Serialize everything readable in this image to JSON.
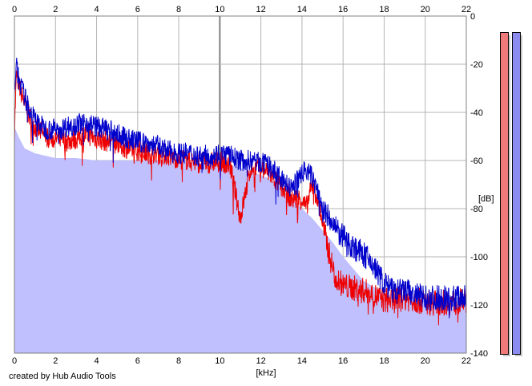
{
  "chart_data": {
    "type": "line",
    "title": "",
    "xlabel": "[kHz]",
    "ylabel": "[dB]",
    "xlim": [
      0,
      22
    ],
    "ylim": [
      -140,
      0
    ],
    "x_ticks": [
      "0",
      "2",
      "4",
      "6",
      "8",
      "10",
      "12",
      "14",
      "16",
      "18",
      "20",
      "22"
    ],
    "y_ticks": [
      "0",
      "-20",
      "-40",
      "-60",
      "-80",
      "-100",
      "-120",
      "-140"
    ],
    "grid": true,
    "fill_color": "#c0c0ff",
    "series": [
      {
        "color": "#0000cc",
        "x": [
          0,
          0.1,
          0.2,
          0.4,
          0.6,
          0.8,
          1,
          1.5,
          2,
          2.5,
          3,
          3.5,
          4,
          4.5,
          5,
          5.5,
          6,
          6.5,
          7,
          7.5,
          8,
          8.5,
          9,
          9.5,
          10,
          10.5,
          11,
          11.5,
          12,
          12.5,
          13,
          13.5,
          14,
          14.2,
          14.5,
          14.8,
          15,
          15.3,
          15.6,
          16,
          16.5,
          17,
          17.5,
          18,
          18.5,
          19,
          19.5,
          20,
          20.5,
          21,
          21.5,
          22
        ],
        "y": [
          -30,
          -21,
          -26,
          -31,
          -36,
          -40,
          -43,
          -47,
          -47,
          -46,
          -45,
          -44,
          -46,
          -47,
          -49,
          -51,
          -52,
          -53,
          -54,
          -56,
          -57,
          -57,
          -58,
          -58,
          -57,
          -58,
          -60,
          -60,
          -61,
          -63,
          -68,
          -72,
          -65,
          -64,
          -67,
          -74,
          -80,
          -84,
          -88,
          -92,
          -96,
          -99,
          -104,
          -111,
          -115,
          -114,
          -116,
          -117,
          -117,
          -117,
          -117,
          -116
        ]
      },
      {
        "color": "#ee0000",
        "x": [
          0,
          0.1,
          0.2,
          0.4,
          0.6,
          0.8,
          1,
          1.5,
          2,
          2.5,
          3,
          3.5,
          4,
          4.5,
          5,
          5.5,
          6,
          6.5,
          7,
          7.5,
          8,
          8.5,
          9,
          9.5,
          10,
          10.5,
          11,
          11.5,
          12,
          12.5,
          13,
          13.5,
          14,
          14.2,
          14.5,
          14.8,
          15,
          15.3,
          15.6,
          16,
          16.5,
          17,
          17.5,
          18,
          18.5,
          19,
          19.5,
          20,
          20.5,
          21,
          21.5,
          22
        ],
        "y": [
          -48,
          -24,
          -28,
          -34,
          -39,
          -43,
          -46,
          -50,
          -51,
          -52,
          -51,
          -49,
          -51,
          -52,
          -53,
          -55,
          -56,
          -57,
          -57,
          -58,
          -59,
          -60,
          -61,
          -61,
          -60,
          -62,
          -84,
          -63,
          -63,
          -66,
          -71,
          -76,
          -76,
          -80,
          -70,
          -77,
          -86,
          -98,
          -108,
          -112,
          -113,
          -114,
          -116,
          -118,
          -118,
          -117,
          -118,
          -119,
          -119,
          -119,
          -119,
          -118
        ]
      }
    ],
    "fill_levels": {
      "x": [
        0,
        0.2,
        0.5,
        1,
        1.5,
        2,
        3,
        4,
        5,
        6,
        7,
        8,
        9,
        10,
        11,
        12,
        12.5,
        13,
        13.5,
        14,
        14.5,
        15,
        15.5,
        16,
        17,
        18,
        19,
        20,
        21,
        22
      ],
      "y": [
        -46,
        -50,
        -55,
        -57,
        -58,
        -59,
        -59,
        -60,
        -60,
        -60,
        -60,
        -60,
        -61,
        -61,
        -63,
        -66,
        -68,
        -72,
        -76,
        -80,
        -84,
        -89,
        -94,
        -100,
        -110,
        -115,
        -116,
        -117,
        -117,
        -117
      ]
    }
  },
  "credit": "created by Hub Audio Tools",
  "meters": {
    "left": {
      "color": "#f07a7a"
    },
    "right": {
      "color": "#8c8cf0"
    }
  }
}
